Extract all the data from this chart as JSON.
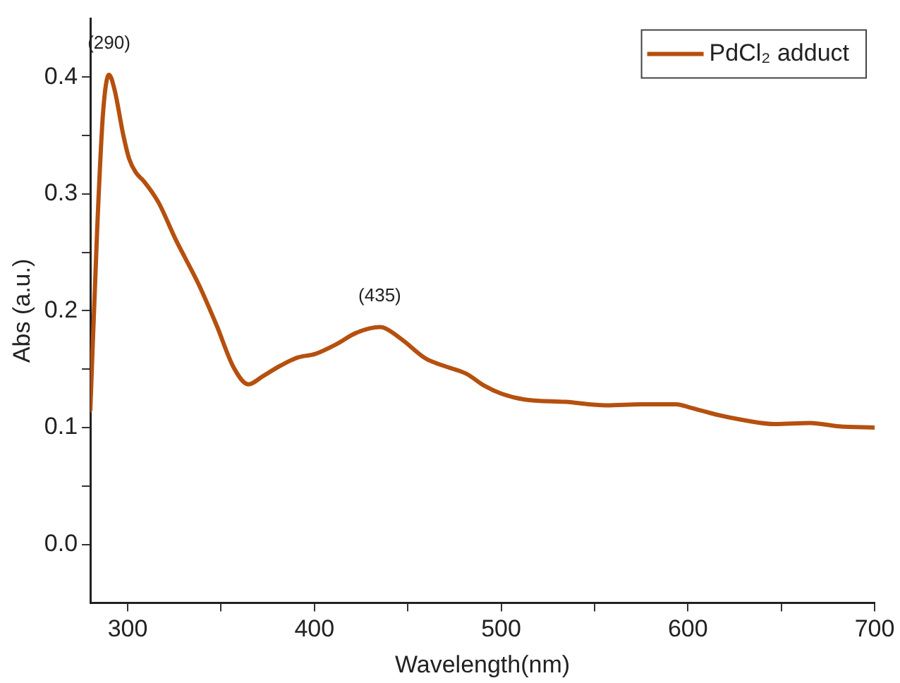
{
  "chart_data": {
    "type": "line",
    "xlabel": "Wavelength(nm)",
    "ylabel": "Abs (a.u.)",
    "legend": "top right",
    "marker": "none",
    "xlim": [
      280,
      700
    ],
    "ylim": [
      -0.05,
      0.45
    ],
    "xticks": [
      300,
      {
        "value": 350,
        "label": null
      },
      400,
      {
        "value": 450,
        "label": null
      },
      500,
      {
        "value": 550,
        "label": null
      },
      600,
      {
        "value": 650,
        "label": null
      },
      700
    ],
    "yticks": [
      {
        "value": 0,
        "label": "0.0"
      },
      {
        "value": 0.05,
        "label": null
      },
      0.1,
      {
        "value": 0.15,
        "label": null
      },
      0.2,
      {
        "value": 0.25,
        "label": null
      },
      0.3,
      {
        "value": 0.35,
        "label": null
      },
      0.4
    ],
    "annotations": [
      {
        "text": "(290)",
        "x": 290,
        "y": 0.402
      },
      {
        "text": "(435)",
        "x": 435,
        "y": 0.186
      }
    ],
    "series": [
      {
        "name": "PdCl₂ adduct",
        "color": "#b5500f",
        "x": [
          280,
          283.7,
          286.8,
          290,
          293,
          297.7,
          300.8,
          304.5,
          308.6,
          316.4,
          325.7,
          338.2,
          347.5,
          356.9,
          364.7,
          372.4,
          381.8,
          391.1,
          400.5,
          411.4,
          422.3,
          435,
          437.9,
          447.2,
          459.7,
          469,
          481.5,
          490.8,
          500.2,
          512.6,
          534.5,
          556.3,
          575,
          593.7,
          601.5,
          615.5,
          631.1,
          646.7,
          665.4,
          681,
          700
        ],
        "values": [
          0.115,
          0.271,
          0.369,
          0.402,
          0.389,
          0.35,
          0.33,
          0.318,
          0.311,
          0.293,
          0.261,
          0.222,
          0.188,
          0.151,
          0.137,
          0.144,
          0.153,
          0.16,
          0.163,
          0.171,
          0.181,
          0.186,
          0.185,
          0.175,
          0.159,
          0.153,
          0.146,
          0.136,
          0.129,
          0.124,
          0.122,
          0.119,
          0.12,
          0.12,
          0.117,
          0.111,
          0.106,
          0.103,
          0.104,
          0.101,
          0.1
        ]
      }
    ]
  }
}
